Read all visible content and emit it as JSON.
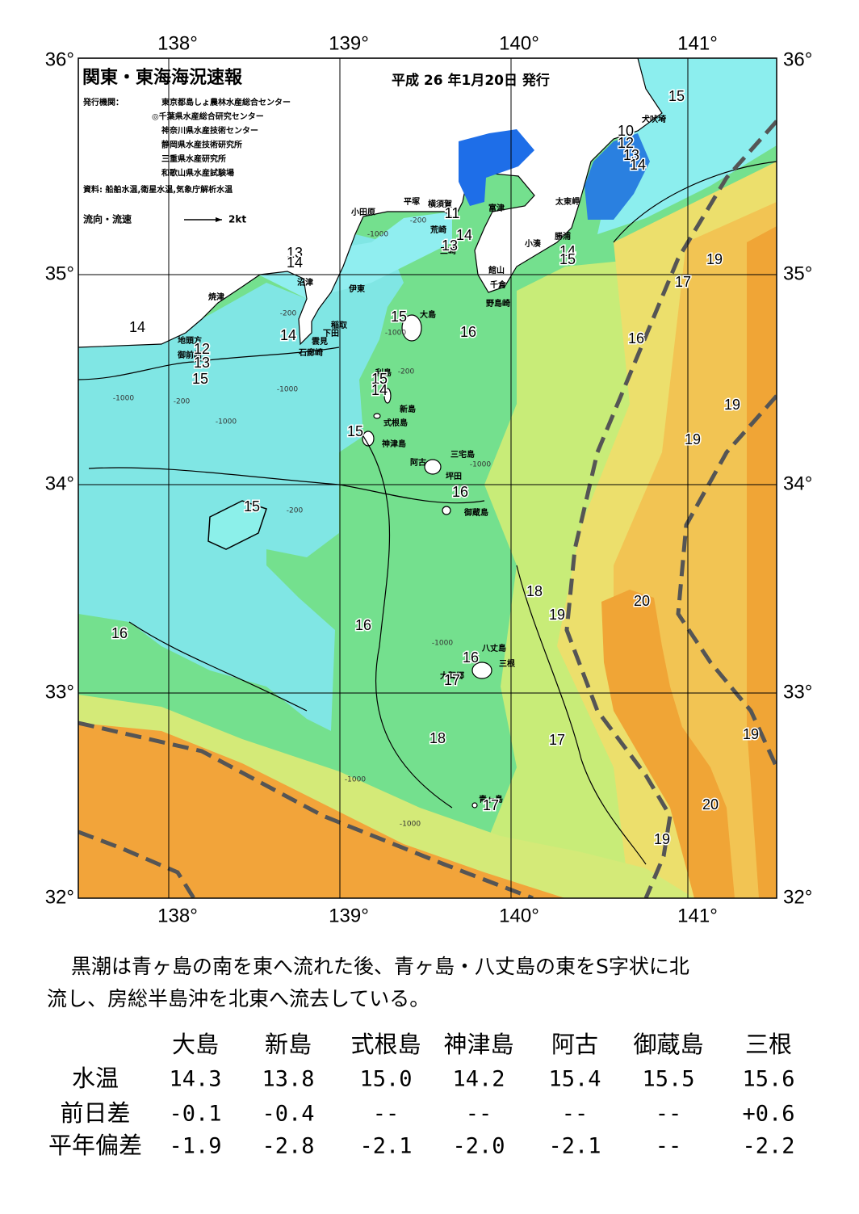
{
  "header": {
    "title": "関東・東海海況速報",
    "date": "平成 26 年1月20日 発行",
    "publisher_label": "発行機関：",
    "publishers": [
      "東京都島しょ農林水産総合センター",
      "◎千葉県水産総合研究センター",
      "神奈川県水産技術センター",
      "静岡県水産技術研究所",
      "三重県水産研究所",
      "和歌山県水産試験場"
    ],
    "source": "資料: 船舶水温,衛星水温,気象庁解析水温",
    "flow_label": "流向・流速",
    "flow_scale": "2kt"
  },
  "map": {
    "lon_labels": [
      "138°",
      "139°",
      "140°",
      "141°"
    ],
    "lat_labels": [
      "36°",
      "35°",
      "34°",
      "33°",
      "32°"
    ],
    "place_names": [
      "犬吠埼",
      "太東岬",
      "勝浦",
      "小湊",
      "横須賀",
      "富津",
      "平塚",
      "小田原",
      "荒崎",
      "三崎",
      "館山",
      "千倉",
      "野島崎",
      "沼津",
      "伊東",
      "稲取",
      "下田",
      "雲見",
      "石廊崎",
      "焼津",
      "地頭方",
      "御前崎",
      "大島",
      "利島",
      "新島",
      "式根島",
      "神津島",
      "三宅島",
      "阿古",
      "坪田",
      "御蔵島",
      "八丈島",
      "三根",
      "大賀郷",
      "青ヶ島"
    ],
    "contour_labels": [
      "15",
      "10",
      "12",
      "13",
      "14",
      "14",
      "15",
      "19",
      "17",
      "16",
      "13",
      "14",
      "14",
      "12",
      "13",
      "15",
      "14",
      "15",
      "16",
      "15",
      "14",
      "15",
      "19",
      "19",
      "16",
      "15",
      "18",
      "19",
      "20",
      "16",
      "16",
      "16",
      "17",
      "19",
      "18",
      "17",
      "20",
      "19",
      "17",
      "11",
      "14",
      "13"
    ],
    "depth_labels": [
      "-200",
      "-1000",
      "-200",
      "-1000",
      "-1000",
      "-200",
      "-1000",
      "-200",
      "-1000",
      "-1000",
      "-200",
      "-1000",
      "-1000",
      "-1000"
    ]
  },
  "summary": [
    "黒潮は青ヶ島の南を東へ流れた後、青ヶ島・八丈島の東をS字状に北",
    "流し、房総半島沖を北東へ流去している。"
  ],
  "table": {
    "columns": [
      "大島",
      "新島",
      "式根島",
      "神津島",
      "阿古",
      "御蔵島",
      "三根"
    ],
    "rows": [
      {
        "label": "水温",
        "cells": [
          "14.3",
          "13.8",
          "15.0",
          "14.2",
          "15.4",
          "15.5",
          "15.6"
        ]
      },
      {
        "label": "前日差",
        "cells": [
          "-0.1",
          "-0.4",
          "--",
          "--",
          "--",
          "--",
          "+0.6"
        ]
      },
      {
        "label": "平年偏差",
        "cells": [
          "-1.9",
          "-2.8",
          "-2.1",
          "-2.0",
          "-2.1",
          "--",
          "-2.2"
        ]
      }
    ]
  }
}
